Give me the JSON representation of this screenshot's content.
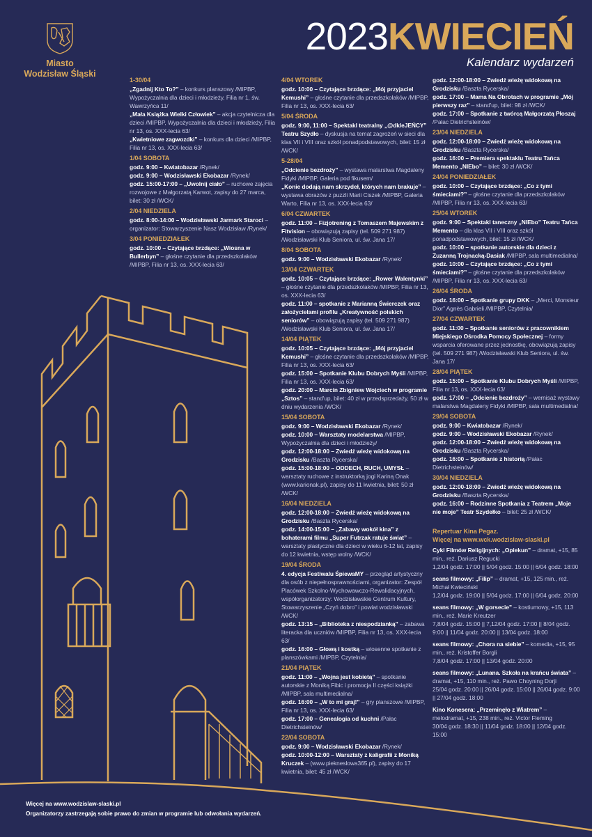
{
  "colors": {
    "background": "#262a56",
    "accent": "#d9a85a",
    "text": "#c9cce6",
    "highlight": "#ffffff"
  },
  "logo": {
    "icon": "coat-of-arms-icon",
    "line1": "Miasto",
    "line2": "Wodzisław Śląski"
  },
  "header": {
    "year": "2023",
    "month": "KWIECIEŃ",
    "subtitle": "Kalendarz wydarzeń"
  },
  "columns": [
    [
      {
        "date": "1-30/04",
        "items": [
          {
            "b": "„Zgadnij Kto To?”",
            "t": " – konkurs planszowy /MIPBP, Wypożyczalnia dla dzieci i młodzieży, Filia nr 1, św. Wawrzyńca 11/"
          },
          {
            "b": "„Mała Książka Wielki Człowiek”",
            "t": " – akcja czytelnicza dla dzieci /MIPBP, Wypożyczalnia dla dzieci i młodzieży, Filia nr 13, os. XXX-lecia 63/"
          },
          {
            "b": "„Kwietniowe zagwozdki”",
            "t": " – konkurs dla dzieci /MIPBP, Filia nr 13, os. XXX-lecia 63/"
          }
        ]
      },
      {
        "date": "1/04 SOBOTA",
        "items": [
          {
            "b": "godz. 9:00 – Kwiatobazar",
            "t": " /Rynek/"
          },
          {
            "b": "godz. 9:00 – Wodzisławski Ekobazar",
            "t": " /Rynek/"
          },
          {
            "b": "godz. 15:00-17:00 – „Uwolnij ciało”",
            "t": " – ruchowe zajęcia rozwojowe z Małgorzatą Karwot, zapisy do 27 marca, bilet: 30 zł /WCK/"
          }
        ]
      },
      {
        "date": "2/04 NIEDZIELA",
        "items": [
          {
            "b": "godz. 8:00-14:00 – Wodzisławski Jarmark Staroci",
            "t": " – organizator: Stowarzyszenie Nasz Wodzisław /Rynek/"
          }
        ]
      },
      {
        "date": "3/04 PONIEDZIAŁEK",
        "items": [
          {
            "b": "godz. 10:00 – Czytające brzdące: „Wiosna w Bullerbyn”",
            "t": " – głośne czytanie dla przedszkolaków /MIPBP, Filia nr 13, os. XXX-lecia 63/"
          }
        ]
      }
    ],
    [
      {
        "date": "4/04 WTOREK",
        "items": [
          {
            "b": "godz. 10:00 – Czytające brzdące: „Mój przyjaciel Kemushi”",
            "t": " – głośne czytanie dla przedszkolaków /MIPBP, Filia nr 13, os. XXX-lecia 63/"
          }
        ]
      },
      {
        "date": "5/04 ŚRODA",
        "items": [
          {
            "b": "godz. 9:00, 11:00 – Spektakl teatralny „@dkleJEŃCY” Teatru Szydło",
            "t": " – dyskusja na temat zagrożeń w sieci dla klas VII i VIII oraz szkół ponadpodstawowych, bilet: 15 zł /WCK/"
          }
        ]
      },
      {
        "date": "5-28/04",
        "items": [
          {
            "b": "„Odcienie bezdroży”",
            "t": " – wystawa malarstwa Magdaleny Fidyki /MIPBP, Galeria pod fikusem/"
          },
          {
            "b": "„Konie dodają nam skrzydeł, których nam brakuje”",
            "t": " – wystawa obrazów z puzzli Marii Ciszek /MIPBP, Galeria Warto, Filia nr 13, os. XXX-lecia 63/"
          }
        ]
      },
      {
        "date": "6/04 CZWARTEK",
        "items": [
          {
            "b": "godz. 11:00 – Fizjotrening z Tomaszem Majewskim z Fitvision",
            "t": " – obowiązują zapisy (tel. 509 271 987) /Wodzisławski Klub Seniora, ul. św. Jana 17/"
          }
        ]
      },
      {
        "date": "8/04 SOBOTA",
        "items": [
          {
            "b": "godz. 9:00 – Wodzisławski Ekobazar",
            "t": " /Rynek/"
          }
        ]
      },
      {
        "date": "13/04 CZWARTEK",
        "items": [
          {
            "b": "godz. 10:05 – Czytające brzdące: „Rower Walentynki”",
            "t": " – głośne czytanie dla przedszkolaków /MIPBP, Filia nr 13, os. XXX-lecia 63/"
          },
          {
            "b": "godz. 11:00 – spotkanie z Marianną Świerczek oraz założycielami profilu „Kreatywność polskich seniorów”",
            "t": " – obowiązują zapisy (tel. 509 271 987) /Wodzisławski Klub Seniora, ul. św. Jana 17/"
          }
        ]
      },
      {
        "date": "14/04 PIĄTEK",
        "items": [
          {
            "b": "godz. 10:05 – Czytające brzdące: „Mój przyjaciel Kemushi”",
            "t": " – głośne czytanie dla przedszkolaków /MIPBP, Filia nr 13, os. XXX-lecia 63/"
          },
          {
            "b": "godz. 15:00 – Spotkanie Klubu Dobrych Myśli",
            "t": " /MIPBP, Filia nr 13, os. XXX-lecia 63/"
          },
          {
            "b": "godz. 20:00 – Marcin Zbigniew Wojciech w programie „Sztos”",
            "t": " – stand'up, bilet: 40 zł w przedsprzedaży, 50 zł w dniu wydarzenia /WCK/"
          }
        ]
      },
      {
        "date": "15/04 SOBOTA",
        "items": [
          {
            "b": "godz. 9:00 – Wodzisławski Ekobazar",
            "t": " /Rynek/"
          },
          {
            "b": "godz. 10:00 – Warsztaty modelarstwa",
            "t": " /MIPBP, Wypożyczalnia dla dzieci i młodzieży/"
          },
          {
            "b": "godz. 12:00-18:00 – Zwiedź wieżę widokową na Grodzisku",
            "t": " /Baszta Rycerska/"
          },
          {
            "b": "godz. 15:00-18:00 – ODDECH, RUCH, UMYSŁ",
            "t": " – warsztaty ruchowe z instruktorką jogi Kariną Onak (www.karionak.pl), zapisy do 11 kwietnia, bilet: 50 zł /WCK/"
          }
        ]
      },
      {
        "date": "16/04 NIEDZIELA",
        "items": [
          {
            "b": "godz. 12:00-18:00 – Zwiedź wieżę widokową na Grodzisku",
            "t": " /Baszta Rycerska/"
          },
          {
            "b": "godz. 14:00-15:00 – „Zabawy wokół kina” z bohaterami filmu „Super Futrzak ratuje świat”",
            "t": " – warsztaty plastyczne dla dzieci w wieku 6-12 lat, zapisy do 12 kwietnia, wstęp wolny /WCK/"
          }
        ]
      },
      {
        "date": "19/04 ŚRODA",
        "items": [
          {
            "b": "4. edycja Festiwalu ŚpiewaMY",
            "t": " – przegląd artystyczny dla osób z niepełnosprawnościami, organizator: Zespół Placówek Szkolno-Wychowawczo-Rewalidacyjnych, współorganizatorzy: Wodzisławskie Centrum Kultury, Stowarzyszenie „Czyń dobro” i powiat wodzisławski /WCK/"
          },
          {
            "b": "godz. 13:15 – „Biblioteka z niespodzianką”",
            "t": " – zabawa literacka dla uczniów /MIPBP, Filia nr 13, os. XXX-lecia 63/"
          },
          {
            "b": "godz. 16:00 – Głową i kostką",
            "t": " – wiosenne spotkanie z planszówkami /MIPBP, Czytelnia/"
          }
        ]
      },
      {
        "date": "21/04 PIĄTEK",
        "items": [
          {
            "b": "godz. 11:00 – „Wojna jest kobietą”",
            "t": " – spotkanie autorskie z Moniką Fibic i promocja II części książki /MIPBP, sala multimedialna/"
          },
          {
            "b": "godz. 16:00 – „W to mi graj!”",
            "t": " – gry planszowe /MIPBP, Filia nr 13, os. XXX-lecia 63/"
          },
          {
            "b": "godz. 17:00 – Genealogia od kuchni",
            "t": " /Pałac Dietrichsteinów/"
          }
        ]
      },
      {
        "date": "22/04 SOBOTA",
        "items": [
          {
            "b": "godz. 9:00 – Wodzisławski Ekobazar",
            "t": " /Rynek/"
          },
          {
            "b": "godz. 10:00-12:00 – Warsztaty z kaligrafii z Moniką Kruczek",
            "t": " – (www.piekneslowa365.pl), zapisy do 17 kwietnia, bilet: 45 zł /WCK/"
          }
        ]
      }
    ],
    [
      {
        "date": "",
        "items": [
          {
            "b": "godz. 12:00-18:00 – Zwiedź wieżę widokową na Grodzisku",
            "t": " /Baszta Rycerska/"
          },
          {
            "b": "godz. 17:00 – Mama Na Obrotach w programie „Mój pierwszy raz”",
            "t": " – stand'up, bilet: 98 zł /WCK/"
          },
          {
            "b": "godz. 17:00 – Spotkanie z twórcą Małgorzatą Płoszaj",
            "t": " /Pałac Dietrichsteinów/"
          }
        ]
      },
      {
        "date": "23/04 NIEDZIELA",
        "items": [
          {
            "b": "godz. 12:00-18:00 – Zwiedź wieżę widokową na Grodzisku",
            "t": " /Baszta Rycerska/"
          },
          {
            "b": "godz. 16:00 – Premiera spektaklu Teatru Tańca Memento „NIEbo”",
            "t": " – bilet: 30 zł /WCK/"
          }
        ]
      },
      {
        "date": "24/04 PONIEDZIAŁEK",
        "items": [
          {
            "b": "godz. 10:00 – Czytające brzdące: „Co z tymi śmieciami?”",
            "t": " – głośne czytanie dla przedszkolaków /MIPBP, Filia nr 13, os. XXX-lecia 63/"
          }
        ]
      },
      {
        "date": "25/04 WTOREK",
        "items": [
          {
            "b": "godz. 9:00 – Spektakl taneczny „NIEbo” Teatru Tańca Memento",
            "t": " – dla klas VII i VIII oraz szkół ponadpodstawowych, bilet: 15 zł /WCK/"
          },
          {
            "b": "godz. 10:00 – spotkanie autorskie dla dzieci z Zuzanną Trojnacką-Dasiak",
            "t": " /MIPBP, sala multimedialna/"
          },
          {
            "b": "godz. 10:00 – Czytające brzdące: „Co z tymi śmieciami?”",
            "t": " – głośne czytanie dla przedszkolaków /MIPBP, Filia nr 13, os. XXX-lecia 63/"
          }
        ]
      },
      {
        "date": "26/04 ŚRODA",
        "items": [
          {
            "b": "godz. 16:00 – Spotkanie grupy DKK",
            "t": " – „Merci, Monsieur Dior” Agnès Gabrieli /MIPBP, Czytelnia/"
          }
        ]
      },
      {
        "date": "27/04 CZWARTEK",
        "items": [
          {
            "b": "godz. 11:00 – Spotkanie seniorów z pracownikiem Miejskiego Ośrodka Pomocy Społecznej",
            "t": " – formy wsparcia oferowane przez jednostkę, obowiązują zapisy (tel. 509 271 987) /Wodzisławski Klub Seniora, ul. św. Jana 17/"
          }
        ]
      },
      {
        "date": "28/04 PIĄTEK",
        "items": [
          {
            "b": "godz. 15:00 – Spotkanie Klubu Dobrych Myśli",
            "t": " /MIPBP, Filia nr 13, os. XXX-lecia 63/"
          },
          {
            "b": "godz. 17:00 – „Odcienie bezdroży”",
            "t": " – wernisaż wystawy malarstwa Magdaleny Fidyki /MIPBP, sala multimedialna/"
          }
        ]
      },
      {
        "date": "29/04 SOBOTA",
        "items": [
          {
            "b": "godz. 9:00 – Kwiatobazar",
            "t": " /Rynek/"
          },
          {
            "b": "godz. 9:00 – Wodzisławski Ekobazar",
            "t": " /Rynek/"
          },
          {
            "b": "godz. 12:00-18:00 – Zwiedź wieżę widokową na Grodzisku",
            "t": " /Baszta Rycerska/"
          },
          {
            "b": "godz. 16:00 – Spotkanie z historią",
            "t": " /Pałac Dietrichsteinów/"
          }
        ]
      },
      {
        "date": "30/04 NIEDZIELA",
        "items": [
          {
            "b": "godz. 12:00-18:00 – Zwiedź wieżę widokową na Grodzisku",
            "t": " /Baszta Rycerska/"
          },
          {
            "b": "godz. 16:00 – Rodzinne Spotkania z Teatrem „Moje nie moje” Teatr Szydełko",
            "t": " – bilet: 25 zł /WCK/"
          }
        ]
      }
    ]
  ],
  "cinema": {
    "title1": "Repertuar Kina Pegaz.",
    "title2": "Więcej na www.wck.wodzislaw-slaski.pl",
    "films": [
      {
        "b": "Cykl Filmów Religijnych: „Opiekun”",
        "t": " – dramat, +15, 85 min., reż. Dariusz Regucki",
        "times": "1,2/04 godz. 17:00 || 5/04 godz. 15:00 || 6/04 godz. 18:00"
      },
      {
        "b": "seans filmowy: „Filip”",
        "t": " – dramat, +15, 125 min., reż. Michał Kwieciński",
        "times": "1,2/04 godz. 19:00 || 5/04 godz. 17:00 || 6/04 godz. 20:00"
      },
      {
        "b": "seans filmowy: „W gorsecie”",
        "t": " – kostiumowy, +15, 113 min., reż. Marie Kreutzer",
        "times": "7,8/04 godz. 15:00 || 7,12/04 godz. 17:00 || 8/04 godz. 9:00 || 11/04 godz. 20:00 || 13/04 godz. 18:00"
      },
      {
        "b": "seans filmowy: „Chora na siebie”",
        "t": " – komedia, +15, 95 min., reż. Kristoffer Borgli",
        "times": "7,8/04 godz. 17:00 || 13/04 godz. 20:00"
      },
      {
        "b": "seans filmowy: „Lunana. Szkoła na krańcu świata”",
        "t": " – dramat, +15, 110 min., reż. Pawo Choyning Dorji",
        "times": "25/04 godz. 20:00 || 26/04 godz. 15:00 || 26/04 godz. 9:00 || 27/04 godz. 18:00"
      },
      {
        "b": "Kino Konesera: „Przeminęło z Wiatrem”",
        "t": " – melodramat, +15, 238 min., reż. Victor Fleming",
        "times": "30/04 godz. 18:30 || 11/04 godz. 18:00 || 12/04 godz. 15:00"
      }
    ]
  },
  "footer": {
    "line1": "Więcej na www.wodzislaw-slaski.pl",
    "line2": "Organizatorzy zastrzegają sobie prawo do zmian w programie lub odwołania wydarzeń."
  }
}
